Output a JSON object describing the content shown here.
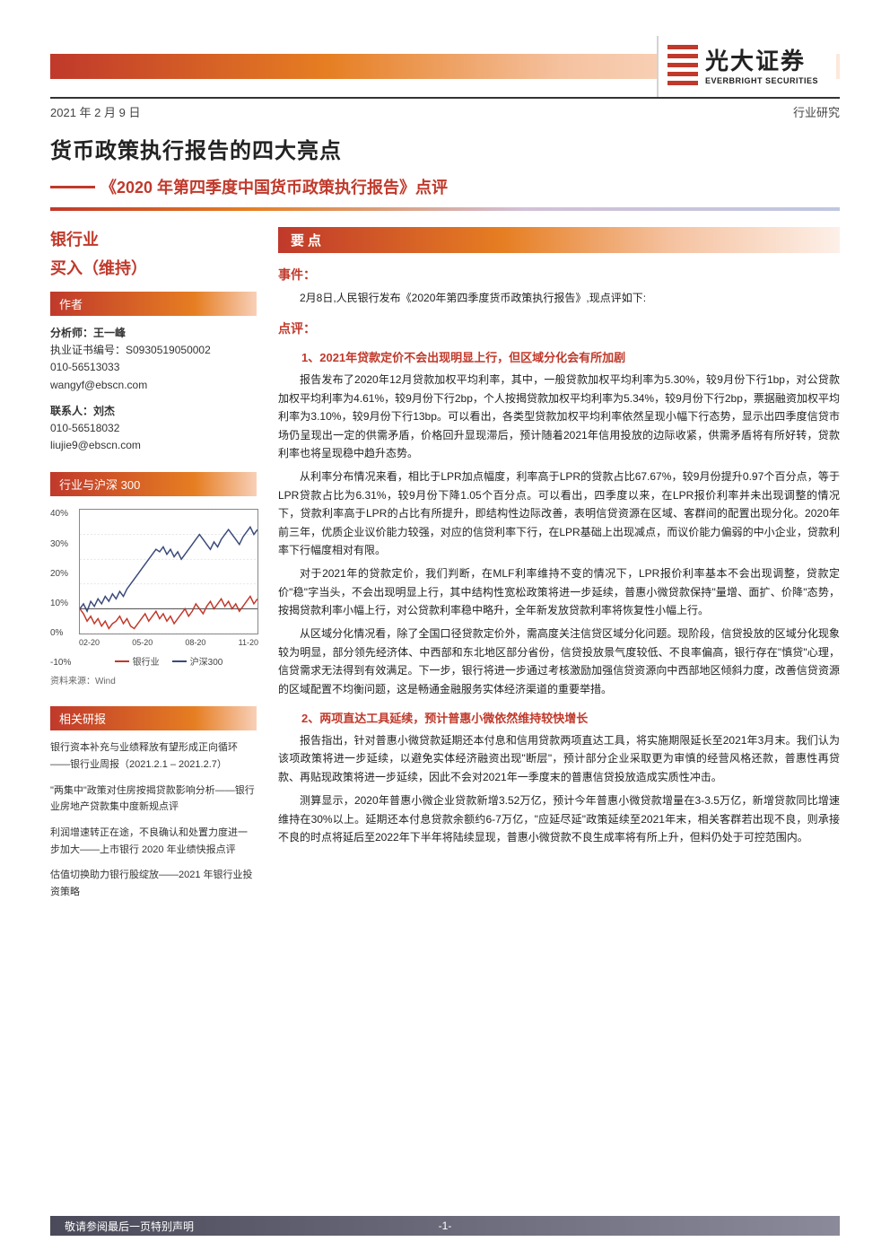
{
  "header": {
    "logo_cn": "光大证券",
    "logo_en": "EVERBRIGHT SECURITIES",
    "date": "2021 年 2 月 9 日",
    "doc_type": "行业研究"
  },
  "title": {
    "main": "货币政策执行报告的四大亮点",
    "sub": "《2020 年第四季度中国货币政策执行报告》点评"
  },
  "sidebar": {
    "industry": "银行业",
    "rating": "买入（维持）",
    "author_bar": "作者",
    "authors": [
      {
        "role": "分析师：王一峰",
        "cert": "执业证书编号：S0930519050002",
        "phone": "010-56513033",
        "email": "wangyf@ebscn.com"
      },
      {
        "role": "联系人：刘杰",
        "cert": "",
        "phone": "010-56518032",
        "email": "liujie9@ebscn.com"
      }
    ],
    "chart_bar": "行业与沪深 300",
    "chart": {
      "type": "line",
      "ylim": [
        -10,
        40
      ],
      "ytick_step": 10,
      "ylabels": [
        "40%",
        "30%",
        "20%",
        "10%",
        "0%",
        "-10%"
      ],
      "xlabels": [
        "02-20",
        "05-20",
        "08-20",
        "11-20"
      ],
      "series": [
        {
          "name": "银行业",
          "color": "#c0392b",
          "points": [
            0,
            -2,
            -5,
            -3,
            -6,
            -4,
            -7,
            -5,
            -8,
            -6,
            -5,
            -3,
            -6,
            -4,
            -7,
            -8,
            -6,
            -4,
            -2,
            -5,
            -3,
            -1,
            -4,
            -2,
            -5,
            -3,
            -6,
            -4,
            -2,
            0,
            -3,
            -1,
            2,
            0,
            -2,
            1,
            3,
            0,
            2,
            4,
            1,
            3,
            0,
            2,
            -1,
            1,
            3,
            5,
            2,
            4
          ]
        },
        {
          "name": "沪深300",
          "color": "#3a4a7a",
          "points": [
            0,
            2,
            -1,
            3,
            1,
            4,
            2,
            5,
            3,
            6,
            4,
            7,
            5,
            8,
            10,
            12,
            14,
            16,
            18,
            20,
            22,
            24,
            23,
            25,
            22,
            24,
            21,
            23,
            20,
            22,
            24,
            26,
            28,
            30,
            28,
            26,
            24,
            27,
            25,
            28,
            30,
            32,
            30,
            28,
            26,
            29,
            31,
            33,
            30,
            32
          ]
        }
      ],
      "legend": [
        "银行业",
        "沪深300"
      ],
      "source": "资料来源：Wind"
    },
    "related_bar": "相关研报",
    "related": [
      "银行资本补充与业绩释放有望形成正向循环——银行业周报（2021.2.1 – 2021.2.7）",
      "\"两集中\"政策对住房按揭贷款影响分析——银行业房地产贷款集中度新规点评",
      "利润增速转正在途，不良确认和处置力度进一步加大——上市银行 2020 年业绩快报点评",
      "估值切换助力银行股绽放——2021 年银行业投资策略"
    ]
  },
  "main": {
    "keypoints_bar": "要点",
    "event_label": "事件：",
    "event_text": "2月8日,人民银行发布《2020年第四季度货币政策执行报告》,现点评如下:",
    "comment_label": "点评：",
    "points": [
      {
        "title": "1、2021年贷款定价不会出现明显上行，但区域分化会有所加剧",
        "paras": [
          "报告发布了2020年12月贷款加权平均利率，其中，一般贷款加权平均利率为5.30%，较9月份下行1bp，对公贷款加权平均利率为4.61%，较9月份下行2bp，个人按揭贷款加权平均利率为5.34%，较9月份下行2bp，票据融资加权平均利率为3.10%，较9月份下行13bp。可以看出，各类型贷款加权平均利率依然呈现小幅下行态势，显示出四季度信贷市场仍呈现出一定的供需矛盾，价格回升显现滞后，预计随着2021年信用投放的边际收紧，供需矛盾将有所好转，贷款利率也将呈现稳中趋升态势。",
          "从利率分布情况来看，相比于LPR加点幅度，利率高于LPR的贷款占比67.67%，较9月份提升0.97个百分点，等于LPR贷款占比为6.31%，较9月份下降1.05个百分点。可以看出，四季度以来，在LPR报价利率并未出现调整的情况下，贷款利率高于LPR的占比有所提升，即结构性边际改善，表明信贷资源在区域、客群间的配置出现分化。2020年前三年，优质企业议价能力较强，对应的信贷利率下行，在LPR基础上出现减点，而议价能力偏弱的中小企业，贷款利率下行幅度相对有限。",
          "对于2021年的贷款定价，我们判断，在MLF利率维持不变的情况下，LPR报价利率基本不会出现调整，贷款定价\"稳\"字当头，不会出现明显上行，其中结构性宽松政策将进一步延续，普惠小微贷款保持\"量增、面扩、价降\"态势，按揭贷款利率小幅上行，对公贷款利率稳中略升，全年新发放贷款利率将恢复性小幅上行。",
          "从区域分化情况看，除了全国口径贷款定价外，需高度关注信贷区域分化问题。现阶段，信贷投放的区域分化现象较为明显，部分领先经济体、中西部和东北地区部分省份，信贷投放景气度较低、不良率偏高，银行存在\"慎贷\"心理，信贷需求无法得到有效满足。下一步，银行将进一步通过考核激励加强信贷资源向中西部地区倾斜力度，改善信贷资源的区域配置不均衡问题，这是畅通金融服务实体经济渠道的重要举措。"
        ]
      },
      {
        "title": "2、两项直达工具延续，预计普惠小微依然维持较快增长",
        "paras": [
          "报告指出，针对普惠小微贷款延期还本付息和信用贷款两项直达工具，将实施期限延长至2021年3月末。我们认为该项政策将进一步延续，以避免实体经济融资出现\"断层\"，预计部分企业采取更为审慎的经营风格还款，普惠性再贷款、再贴现政策将进一步延续，因此不会对2021年一季度末的普惠信贷投放造成实质性冲击。",
          "测算显示，2020年普惠小微企业贷款新增3.52万亿，预计今年普惠小微贷款增量在3-3.5万亿，新增贷款同比增速维持在30%以上。延期还本付息贷款余额约6-7万亿，\"应延尽延\"政策延续至2021年末，相关客群若出现不良，则承接不良的时点将延后至2022年下半年将陆续显现，普惠小微贷款不良生成率将有所上升，但料仍处于可控范围内。"
        ]
      }
    ]
  },
  "footer": {
    "disclaimer": "敬请参阅最后一页特别声明",
    "page": "-1-"
  }
}
